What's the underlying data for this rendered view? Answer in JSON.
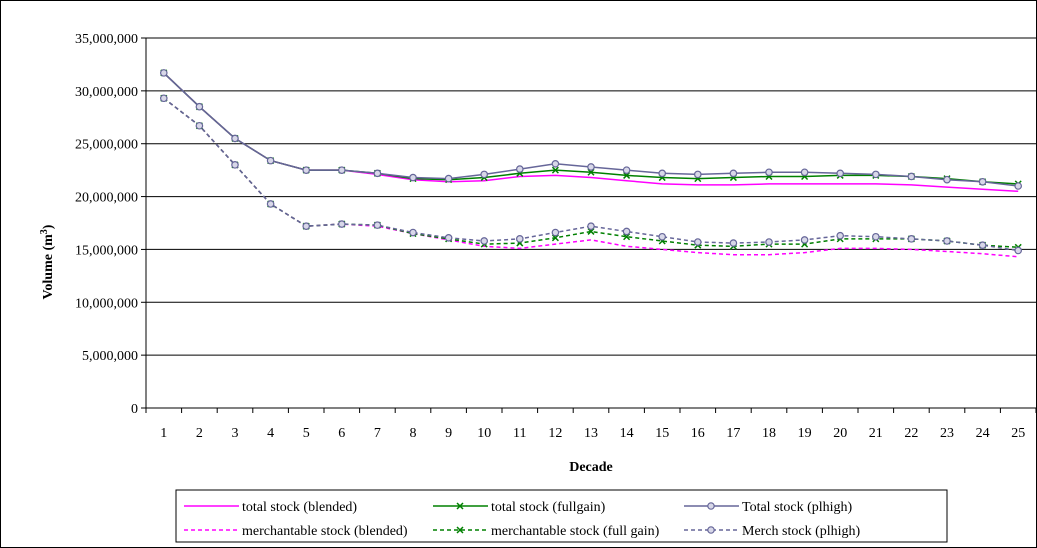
{
  "chart_data": {
    "type": "line",
    "xlabel": "Decade",
    "ylabel_main": "Volume (m",
    "ylabel_sup": "3",
    "ylabel_end": ")",
    "ylim": [
      0,
      35000000
    ],
    "yticks": [
      0,
      5000000,
      10000000,
      15000000,
      20000000,
      25000000,
      30000000,
      35000000
    ],
    "ytick_labels": [
      "0",
      "5,000,000",
      "10,000,000",
      "15,000,000",
      "20,000,000",
      "25,000,000",
      "30,000,000",
      "35,000,000"
    ],
    "categories": [
      "1",
      "2",
      "3",
      "4",
      "5",
      "6",
      "7",
      "8",
      "9",
      "10",
      "11",
      "12",
      "13",
      "14",
      "15",
      "16",
      "17",
      "18",
      "19",
      "20",
      "21",
      "22",
      "23",
      "24",
      "25"
    ],
    "grid": "horizontal",
    "legend_position": "bottom",
    "series": [
      {
        "name": "total stock (blended)",
        "color": "#ff00ff",
        "dash": "solid",
        "marker": "none",
        "values": [
          31700000,
          28500000,
          25500000,
          23400000,
          22500000,
          22500000,
          22100000,
          21600000,
          21400000,
          21500000,
          21900000,
          22000000,
          21800000,
          21500000,
          21200000,
          21100000,
          21100000,
          21200000,
          21200000,
          21200000,
          21200000,
          21100000,
          20900000,
          20700000,
          20500000
        ]
      },
      {
        "name": "total stock (fullgain)",
        "color": "#008000",
        "dash": "solid",
        "marker": "x",
        "values": [
          31700000,
          28500000,
          25500000,
          23400000,
          22500000,
          22500000,
          22200000,
          21700000,
          21600000,
          21800000,
          22200000,
          22500000,
          22300000,
          22000000,
          21800000,
          21700000,
          21800000,
          21900000,
          21900000,
          22000000,
          22000000,
          21900000,
          21700000,
          21400000,
          21200000
        ]
      },
      {
        "name": "Total stock (plhigh)",
        "color": "#666699",
        "dash": "solid",
        "marker": "circle",
        "values": [
          31700000,
          28500000,
          25500000,
          23400000,
          22500000,
          22500000,
          22200000,
          21800000,
          21700000,
          22100000,
          22600000,
          23100000,
          22800000,
          22500000,
          22200000,
          22100000,
          22200000,
          22300000,
          22300000,
          22200000,
          22100000,
          21900000,
          21600000,
          21400000,
          21000000
        ]
      },
      {
        "name": "merchantable stock (blended)",
        "color": "#ff00ff",
        "dash": "dashed",
        "marker": "none",
        "values": [
          29300000,
          26700000,
          23000000,
          19300000,
          17200000,
          17400000,
          17200000,
          16500000,
          15900000,
          15300000,
          15100000,
          15500000,
          15900000,
          15300000,
          15000000,
          14700000,
          14500000,
          14500000,
          14700000,
          15100000,
          15100000,
          15000000,
          14800000,
          14600000,
          14300000
        ]
      },
      {
        "name": "merchantable stock (full gain)",
        "color": "#008000",
        "dash": "dashed",
        "marker": "x",
        "values": [
          29300000,
          26700000,
          23000000,
          19300000,
          17200000,
          17400000,
          17300000,
          16500000,
          16000000,
          15500000,
          15600000,
          16100000,
          16700000,
          16200000,
          15800000,
          15400000,
          15300000,
          15500000,
          15500000,
          16000000,
          16000000,
          16000000,
          15800000,
          15400000,
          15200000
        ]
      },
      {
        "name": "Merch stock (plhigh)",
        "color": "#666699",
        "dash": "dashed",
        "marker": "circle",
        "values": [
          29300000,
          26700000,
          23000000,
          19300000,
          17200000,
          17400000,
          17300000,
          16600000,
          16100000,
          15800000,
          16000000,
          16600000,
          17200000,
          16700000,
          16200000,
          15700000,
          15600000,
          15700000,
          15900000,
          16300000,
          16200000,
          16000000,
          15800000,
          15400000,
          14900000
        ]
      }
    ]
  }
}
